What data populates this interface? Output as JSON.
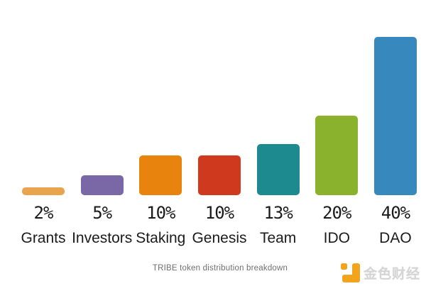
{
  "chart_data": {
    "type": "bar",
    "categories": [
      "Grants",
      "Investors",
      "Staking",
      "Genesis",
      "Team",
      "IDO",
      "DAO"
    ],
    "values": [
      2,
      5,
      10,
      10,
      13,
      20,
      40
    ],
    "value_labels": [
      "2%",
      "5%",
      "10%",
      "10%",
      "13%",
      "20%",
      "40%"
    ],
    "bar_colors": [
      "#e9a54d",
      "#7a68a6",
      "#e8830e",
      "#cf3a1f",
      "#1d8a90",
      "#8ab22c",
      "#3789bd"
    ],
    "title": "TRIBE token distribution breakdown",
    "xlabel": "",
    "ylabel": "",
    "ylim": [
      0,
      40
    ],
    "grid": false,
    "legend": "none",
    "orientation": "vertical"
  },
  "watermark": {
    "text": "金色财经",
    "text_color": "#d5d5d5",
    "icon": "jinse-caijing-logo-icon",
    "icon_color": "#f2a41d"
  },
  "colors": {
    "background": "#ffffff",
    "label_text": "#1b1b1b",
    "caption_text": "#6f6f6f"
  }
}
